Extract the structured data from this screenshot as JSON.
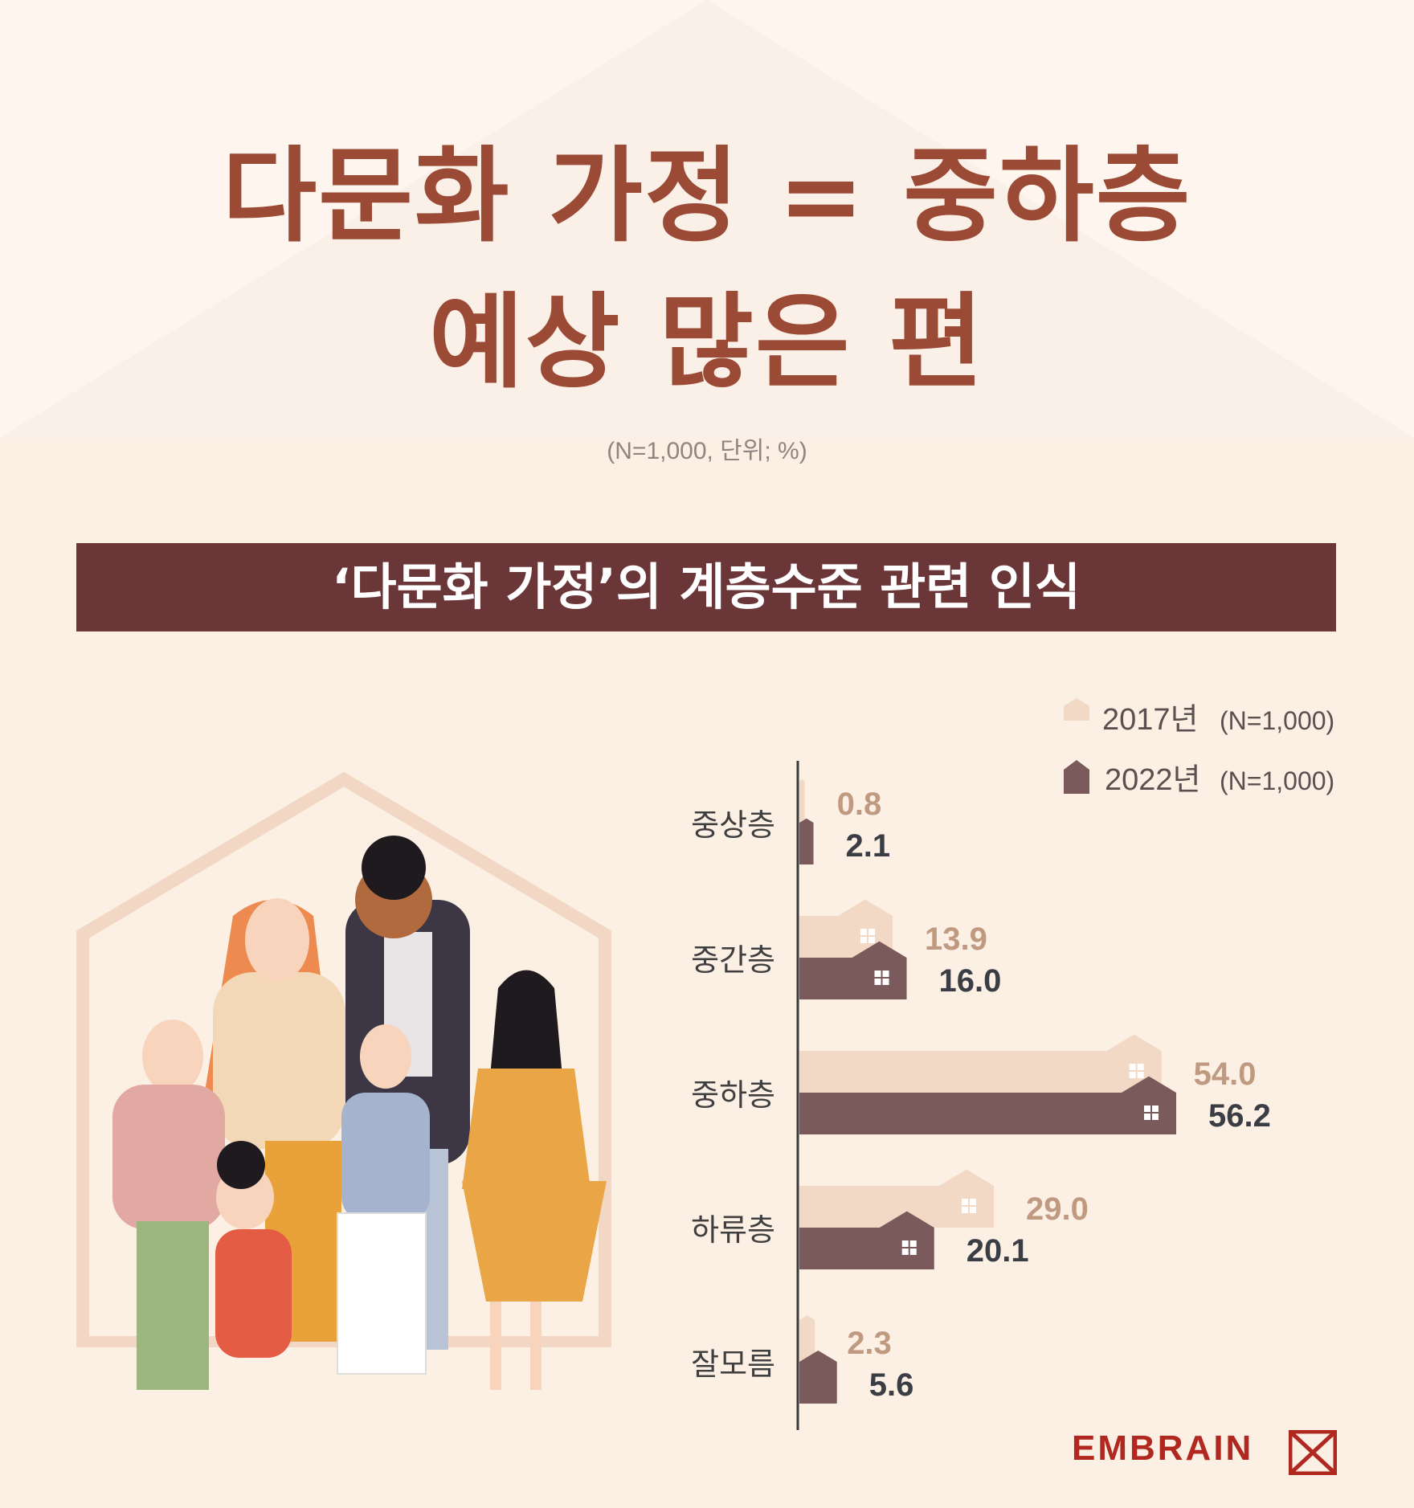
{
  "title": {
    "line1": "다문화 가정 = 중하층",
    "line2": "예상 많은 편"
  },
  "unit_note": "(N=1,000, 단위; %)",
  "banner": "‘다문화 가정’의 계층수준 관련 인식",
  "brand": "EMBRAIN",
  "colors": {
    "series_2017": "#f2d9c6",
    "series_2022": "#7a5a5a",
    "title": "#9b4a35",
    "banner": "#6b3638"
  },
  "chart_data": {
    "type": "bar",
    "orientation": "horizontal",
    "categories": [
      "중상층",
      "중간층",
      "중하층",
      "하류층",
      "잘모름"
    ],
    "series": [
      {
        "name": "2017년",
        "n_label": "(N=1,000)",
        "values": [
          0.8,
          13.9,
          54.0,
          29.0,
          2.3
        ]
      },
      {
        "name": "2022년",
        "n_label": "(N=1,000)",
        "values": [
          2.1,
          16.0,
          56.2,
          20.1,
          5.6
        ]
      }
    ],
    "value_labels": {
      "s2017": [
        "0.8",
        "13.9",
        "54.0",
        "29.0",
        "2.3"
      ],
      "s2022": [
        "2.1",
        "16.0",
        "56.2",
        "20.1",
        "5.6"
      ]
    },
    "xlim": [
      0,
      60
    ],
    "legend": "top-right",
    "grid": false
  }
}
